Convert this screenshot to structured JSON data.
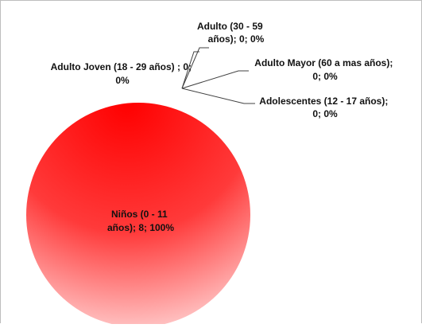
{
  "chart_data": {
    "type": "pie",
    "title": "",
    "legend": "none",
    "series": [
      {
        "values": [
          8,
          0,
          0,
          0,
          0
        ]
      }
    ],
    "categories": [
      "Niños (0 - 11 años)",
      "Adolescentes (12 - 17 años)",
      "Adulto Joven (18 - 29 años)",
      "Adulto (30 - 59 años)",
      "Adulto Mayor (60 a mas años)"
    ],
    "slices": [
      {
        "label": "Niños (0 - 11 años)",
        "value": 8,
        "percent": "100%",
        "color": "#ff1a1a",
        "data_label_lines": [
          "Niños (0 - 11",
          "años); 8; 100%"
        ]
      },
      {
        "label": "Adolescentes (12 - 17 años)",
        "value": 0,
        "percent": "0%",
        "data_label_lines": [
          "Adolescentes  (12 - 17 años);",
          "0; 0%"
        ]
      },
      {
        "label": "Adulto Joven (18 - 29 años)",
        "value": 0,
        "percent": "0%",
        "data_label_lines": [
          "Adulto Joven (18 - 29 años) ; 0;",
          "0%"
        ]
      },
      {
        "label": "Adulto (30 - 59 años)",
        "value": 0,
        "percent": "0%",
        "data_label_lines": [
          "Adulto (30 - 59",
          "años); 0; 0%"
        ]
      },
      {
        "label": "Adulto Mayor (60 a mas años)",
        "value": 0,
        "percent": "0%",
        "data_label_lines": [
          "Adulto Mayor (60 a mas años);",
          "0; 0%"
        ]
      }
    ],
    "colors": {
      "pie_main": "#ff1a1a",
      "pie_light": "#ffc8c8"
    }
  }
}
